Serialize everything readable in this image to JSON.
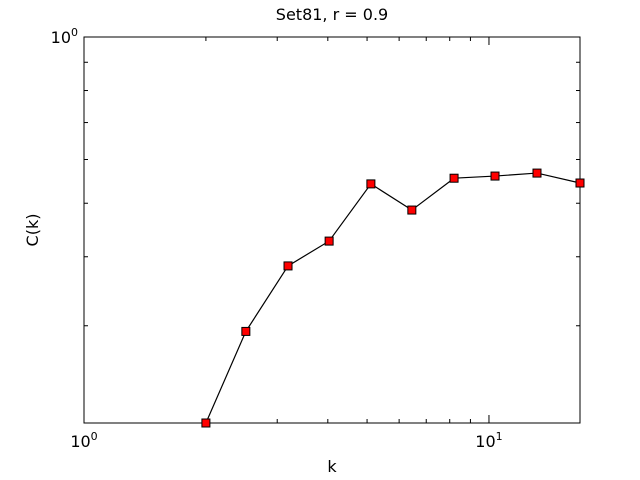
{
  "chart_data": {
    "type": "line",
    "title": "Set81, r = 0.9",
    "xlabel": "k",
    "ylabel": "C(k)",
    "xscale": "log",
    "yscale": "log",
    "x": [
      2,
      2.51,
      3.19,
      4.03,
      5.11,
      6.45,
      8.2,
      10.35,
      13.14,
      16.78
    ],
    "series": [
      {
        "color": "#ff0000",
        "line_color": "#000000",
        "values": [
          0.2,
          0.293,
          0.385,
          0.427,
          0.542,
          0.486,
          0.555,
          0.56,
          0.567,
          0.544
        ]
      }
    ],
    "xlim": [
      1,
      16.78
    ],
    "ylim": [
      0.2,
      1
    ],
    "xticks": [
      {
        "value": 1,
        "label": "10^0"
      },
      {
        "value": 10,
        "label": "10^1"
      }
    ],
    "yticks": [
      {
        "value": 1,
        "label": "10^0"
      }
    ]
  }
}
